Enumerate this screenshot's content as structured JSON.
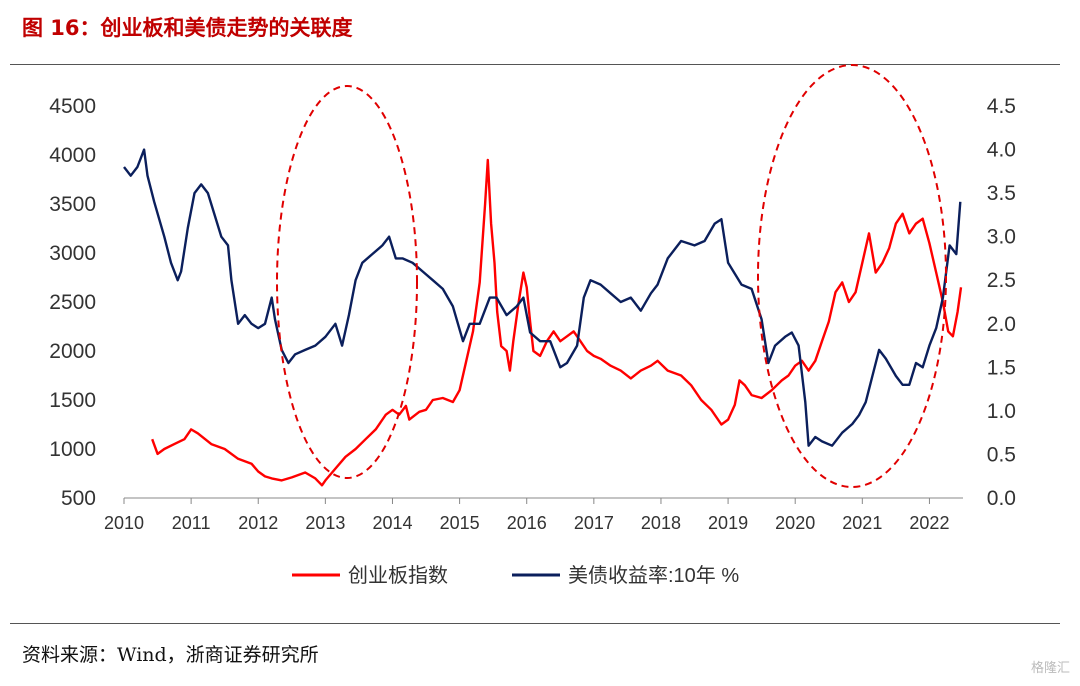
{
  "title": "图 16：创业板和美债走势的关联度",
  "source": "资料来源：Wind，浙商证券研究所",
  "watermark": "格隆汇",
  "chart_data": {
    "type": "line",
    "x_ticks": [
      "2010",
      "2011",
      "2012",
      "2013",
      "2014",
      "2015",
      "2016",
      "2017",
      "2018",
      "2019",
      "2020",
      "2021",
      "2022"
    ],
    "x_range": [
      2010,
      2022.5
    ],
    "y_left": {
      "ticks": [
        "500",
        "1000",
        "1500",
        "2000",
        "2500",
        "3000",
        "3500",
        "4000",
        "4500"
      ],
      "range": [
        500,
        4500
      ]
    },
    "y_right": {
      "ticks": [
        "0.0",
        "0.5",
        "1.0",
        "1.5",
        "2.0",
        "2.5",
        "3.0",
        "3.5",
        "4.0",
        "4.5"
      ],
      "range": [
        0,
        4.5
      ]
    },
    "colors": {
      "chinext": "#ff0000",
      "ust": "#0b1f5c",
      "ellipse": "#e00000"
    },
    "series": [
      {
        "name": "创业板指数",
        "axis": "left",
        "color": "#ff0000",
        "points": [
          [
            2010.42,
            1100
          ],
          [
            2010.5,
            950
          ],
          [
            2010.6,
            1000
          ],
          [
            2010.75,
            1050
          ],
          [
            2010.9,
            1100
          ],
          [
            2011.0,
            1200
          ],
          [
            2011.1,
            1160
          ],
          [
            2011.3,
            1050
          ],
          [
            2011.5,
            1000
          ],
          [
            2011.7,
            900
          ],
          [
            2011.9,
            850
          ],
          [
            2012.0,
            770
          ],
          [
            2012.1,
            720
          ],
          [
            2012.2,
            700
          ],
          [
            2012.35,
            680
          ],
          [
            2012.5,
            710
          ],
          [
            2012.7,
            760
          ],
          [
            2012.85,
            700
          ],
          [
            2012.95,
            630
          ],
          [
            2013.0,
            680
          ],
          [
            2013.15,
            800
          ],
          [
            2013.3,
            920
          ],
          [
            2013.45,
            1000
          ],
          [
            2013.6,
            1100
          ],
          [
            2013.75,
            1200
          ],
          [
            2013.9,
            1350
          ],
          [
            2014.0,
            1400
          ],
          [
            2014.1,
            1350
          ],
          [
            2014.2,
            1440
          ],
          [
            2014.25,
            1300
          ],
          [
            2014.4,
            1380
          ],
          [
            2014.5,
            1400
          ],
          [
            2014.6,
            1500
          ],
          [
            2014.75,
            1520
          ],
          [
            2014.9,
            1480
          ],
          [
            2015.0,
            1600
          ],
          [
            2015.1,
            1900
          ],
          [
            2015.2,
            2200
          ],
          [
            2015.3,
            2700
          ],
          [
            2015.38,
            3500
          ],
          [
            2015.42,
            3950
          ],
          [
            2015.47,
            3300
          ],
          [
            2015.52,
            2900
          ],
          [
            2015.56,
            2400
          ],
          [
            2015.62,
            2050
          ],
          [
            2015.7,
            2000
          ],
          [
            2015.75,
            1800
          ],
          [
            2015.8,
            2100
          ],
          [
            2015.88,
            2500
          ],
          [
            2015.95,
            2800
          ],
          [
            2016.0,
            2650
          ],
          [
            2016.05,
            2300
          ],
          [
            2016.1,
            2000
          ],
          [
            2016.2,
            1950
          ],
          [
            2016.3,
            2100
          ],
          [
            2016.4,
            2200
          ],
          [
            2016.5,
            2100
          ],
          [
            2016.6,
            2150
          ],
          [
            2016.7,
            2200
          ],
          [
            2016.8,
            2100
          ],
          [
            2016.9,
            2000
          ],
          [
            2017.0,
            1950
          ],
          [
            2017.1,
            1920
          ],
          [
            2017.25,
            1850
          ],
          [
            2017.4,
            1800
          ],
          [
            2017.55,
            1720
          ],
          [
            2017.7,
            1800
          ],
          [
            2017.85,
            1850
          ],
          [
            2017.95,
            1900
          ],
          [
            2018.1,
            1800
          ],
          [
            2018.3,
            1750
          ],
          [
            2018.45,
            1650
          ],
          [
            2018.6,
            1500
          ],
          [
            2018.75,
            1400
          ],
          [
            2018.9,
            1250
          ],
          [
            2019.0,
            1300
          ],
          [
            2019.1,
            1450
          ],
          [
            2019.17,
            1700
          ],
          [
            2019.25,
            1650
          ],
          [
            2019.35,
            1550
          ],
          [
            2019.5,
            1520
          ],
          [
            2019.65,
            1600
          ],
          [
            2019.8,
            1700
          ],
          [
            2019.9,
            1750
          ],
          [
            2020.0,
            1850
          ],
          [
            2020.1,
            1900
          ],
          [
            2020.2,
            1800
          ],
          [
            2020.3,
            1900
          ],
          [
            2020.4,
            2100
          ],
          [
            2020.5,
            2300
          ],
          [
            2020.6,
            2600
          ],
          [
            2020.7,
            2700
          ],
          [
            2020.8,
            2500
          ],
          [
            2020.9,
            2600
          ],
          [
            2021.0,
            2900
          ],
          [
            2021.1,
            3200
          ],
          [
            2021.2,
            2800
          ],
          [
            2021.3,
            2900
          ],
          [
            2021.4,
            3050
          ],
          [
            2021.5,
            3300
          ],
          [
            2021.6,
            3400
          ],
          [
            2021.7,
            3200
          ],
          [
            2021.8,
            3300
          ],
          [
            2021.9,
            3350
          ],
          [
            2022.0,
            3100
          ],
          [
            2022.1,
            2800
          ],
          [
            2022.2,
            2500
          ],
          [
            2022.28,
            2200
          ],
          [
            2022.35,
            2150
          ],
          [
            2022.42,
            2400
          ],
          [
            2022.47,
            2650
          ]
        ]
      },
      {
        "name": "美债收益率:10年 %",
        "axis": "right",
        "color": "#0b1f5c",
        "points": [
          [
            2010.0,
            3.8
          ],
          [
            2010.1,
            3.7
          ],
          [
            2010.2,
            3.8
          ],
          [
            2010.3,
            4.0
          ],
          [
            2010.35,
            3.7
          ],
          [
            2010.45,
            3.4
          ],
          [
            2010.6,
            3.0
          ],
          [
            2010.7,
            2.7
          ],
          [
            2010.8,
            2.5
          ],
          [
            2010.85,
            2.6
          ],
          [
            2010.95,
            3.1
          ],
          [
            2011.05,
            3.5
          ],
          [
            2011.15,
            3.6
          ],
          [
            2011.25,
            3.5
          ],
          [
            2011.35,
            3.25
          ],
          [
            2011.45,
            3.0
          ],
          [
            2011.55,
            2.9
          ],
          [
            2011.6,
            2.5
          ],
          [
            2011.7,
            2.0
          ],
          [
            2011.8,
            2.1
          ],
          [
            2011.9,
            2.0
          ],
          [
            2012.0,
            1.95
          ],
          [
            2012.1,
            2.0
          ],
          [
            2012.2,
            2.3
          ],
          [
            2012.25,
            2.05
          ],
          [
            2012.35,
            1.7
          ],
          [
            2012.45,
            1.55
          ],
          [
            2012.55,
            1.65
          ],
          [
            2012.7,
            1.7
          ],
          [
            2012.85,
            1.75
          ],
          [
            2013.0,
            1.85
          ],
          [
            2013.15,
            2.0
          ],
          [
            2013.25,
            1.75
          ],
          [
            2013.35,
            2.1
          ],
          [
            2013.45,
            2.5
          ],
          [
            2013.55,
            2.7
          ],
          [
            2013.7,
            2.8
          ],
          [
            2013.85,
            2.9
          ],
          [
            2013.95,
            3.0
          ],
          [
            2014.05,
            2.75
          ],
          [
            2014.15,
            2.75
          ],
          [
            2014.3,
            2.7
          ],
          [
            2014.45,
            2.6
          ],
          [
            2014.6,
            2.5
          ],
          [
            2014.75,
            2.4
          ],
          [
            2014.9,
            2.2
          ],
          [
            2015.05,
            1.8
          ],
          [
            2015.15,
            2.0
          ],
          [
            2015.3,
            2.0
          ],
          [
            2015.45,
            2.3
          ],
          [
            2015.55,
            2.3
          ],
          [
            2015.7,
            2.1
          ],
          [
            2015.85,
            2.2
          ],
          [
            2015.95,
            2.3
          ],
          [
            2016.05,
            1.9
          ],
          [
            2016.2,
            1.8
          ],
          [
            2016.35,
            1.8
          ],
          [
            2016.5,
            1.5
          ],
          [
            2016.6,
            1.55
          ],
          [
            2016.75,
            1.75
          ],
          [
            2016.85,
            2.3
          ],
          [
            2016.95,
            2.5
          ],
          [
            2017.1,
            2.45
          ],
          [
            2017.25,
            2.35
          ],
          [
            2017.4,
            2.25
          ],
          [
            2017.55,
            2.3
          ],
          [
            2017.7,
            2.15
          ],
          [
            2017.85,
            2.35
          ],
          [
            2017.95,
            2.45
          ],
          [
            2018.1,
            2.75
          ],
          [
            2018.3,
            2.95
          ],
          [
            2018.5,
            2.9
          ],
          [
            2018.65,
            2.95
          ],
          [
            2018.8,
            3.15
          ],
          [
            2018.9,
            3.2
          ],
          [
            2019.0,
            2.7
          ],
          [
            2019.2,
            2.45
          ],
          [
            2019.35,
            2.4
          ],
          [
            2019.5,
            2.05
          ],
          [
            2019.6,
            1.55
          ],
          [
            2019.7,
            1.75
          ],
          [
            2019.85,
            1.85
          ],
          [
            2019.95,
            1.9
          ],
          [
            2020.05,
            1.75
          ],
          [
            2020.15,
            1.1
          ],
          [
            2020.2,
            0.6
          ],
          [
            2020.3,
            0.7
          ],
          [
            2020.4,
            0.65
          ],
          [
            2020.55,
            0.6
          ],
          [
            2020.7,
            0.75
          ],
          [
            2020.85,
            0.85
          ],
          [
            2020.95,
            0.95
          ],
          [
            2021.05,
            1.1
          ],
          [
            2021.15,
            1.4
          ],
          [
            2021.25,
            1.7
          ],
          [
            2021.35,
            1.6
          ],
          [
            2021.5,
            1.4
          ],
          [
            2021.6,
            1.3
          ],
          [
            2021.7,
            1.3
          ],
          [
            2021.8,
            1.55
          ],
          [
            2021.9,
            1.5
          ],
          [
            2022.0,
            1.75
          ],
          [
            2022.1,
            1.95
          ],
          [
            2022.2,
            2.3
          ],
          [
            2022.3,
            2.9
          ],
          [
            2022.4,
            2.8
          ],
          [
            2022.46,
            3.4
          ]
        ]
      }
    ],
    "annotations": [
      "ellipse-2013",
      "ellipse-2021"
    ]
  }
}
